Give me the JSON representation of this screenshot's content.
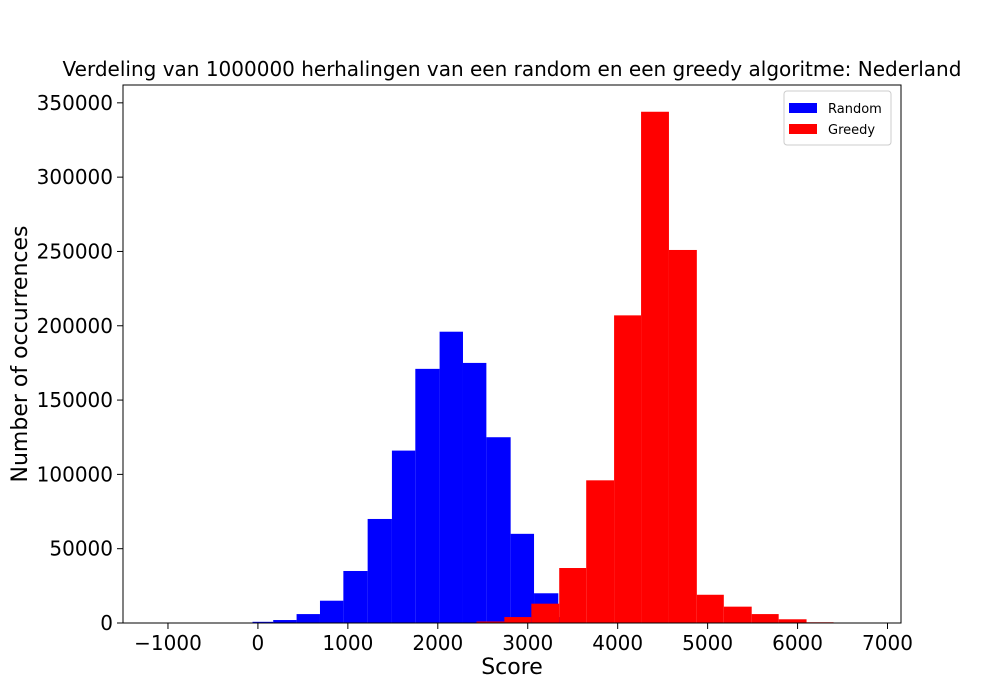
{
  "chart_data": {
    "type": "bar",
    "title": "Verdeling van 1000000 herhalingen van een random en een greedy algoritme: Nederland",
    "xlabel": "Score",
    "ylabel": "Number of occurrences",
    "xlim": [
      -1500,
      7150
    ],
    "ylim": [
      0,
      362000
    ],
    "xticks": [
      -1000,
      0,
      1000,
      2000,
      3000,
      4000,
      5000,
      6000,
      7000
    ],
    "xtick_labels": [
      "−1000",
      "0",
      "1000",
      "2000",
      "3000",
      "4000",
      "5000",
      "6000",
      "7000"
    ],
    "yticks": [
      0,
      50000,
      100000,
      150000,
      200000,
      250000,
      300000,
      350000
    ],
    "ytick_labels": [
      "0",
      "50000",
      "100000",
      "150000",
      "200000",
      "250000",
      "300000",
      "350000"
    ],
    "grid": false,
    "legend_position": "top-right",
    "series": [
      {
        "name": "Random",
        "color": "#0000ff",
        "bins": [
          {
            "x0": -330,
            "x1": -60,
            "value": 200
          },
          {
            "x0": -60,
            "x1": 170,
            "value": 800
          },
          {
            "x0": 170,
            "x1": 430,
            "value": 2000
          },
          {
            "x0": 430,
            "x1": 690,
            "value": 6000
          },
          {
            "x0": 690,
            "x1": 950,
            "value": 15000
          },
          {
            "x0": 950,
            "x1": 1220,
            "value": 35000
          },
          {
            "x0": 1220,
            "x1": 1490,
            "value": 70000
          },
          {
            "x0": 1490,
            "x1": 1750,
            "value": 116000
          },
          {
            "x0": 1750,
            "x1": 2020,
            "value": 171000
          },
          {
            "x0": 2020,
            "x1": 2280,
            "value": 196000
          },
          {
            "x0": 2280,
            "x1": 2540,
            "value": 175000
          },
          {
            "x0": 2540,
            "x1": 2810,
            "value": 125000
          },
          {
            "x0": 2810,
            "x1": 3070,
            "value": 60000
          },
          {
            "x0": 3070,
            "x1": 3340,
            "value": 20000
          },
          {
            "x0": 3340,
            "x1": 3600,
            "value": 4000
          }
        ]
      },
      {
        "name": "Greedy",
        "color": "#ff0000",
        "bins": [
          {
            "x0": 2130,
            "x1": 2430,
            "value": 300
          },
          {
            "x0": 2430,
            "x1": 2740,
            "value": 1000
          },
          {
            "x0": 2740,
            "x1": 3040,
            "value": 4000
          },
          {
            "x0": 3040,
            "x1": 3350,
            "value": 13000
          },
          {
            "x0": 3350,
            "x1": 3650,
            "value": 37000
          },
          {
            "x0": 3650,
            "x1": 3960,
            "value": 96000
          },
          {
            "x0": 3960,
            "x1": 4260,
            "value": 207000
          },
          {
            "x0": 4260,
            "x1": 4570,
            "value": 344000
          },
          {
            "x0": 4570,
            "x1": 4880,
            "value": 251000
          },
          {
            "x0": 4880,
            "x1": 5180,
            "value": 19000
          },
          {
            "x0": 5180,
            "x1": 5490,
            "value": 11000
          },
          {
            "x0": 5490,
            "x1": 5790,
            "value": 6000
          },
          {
            "x0": 5790,
            "x1": 6100,
            "value": 2500
          },
          {
            "x0": 6100,
            "x1": 6400,
            "value": 500
          }
        ]
      }
    ]
  }
}
